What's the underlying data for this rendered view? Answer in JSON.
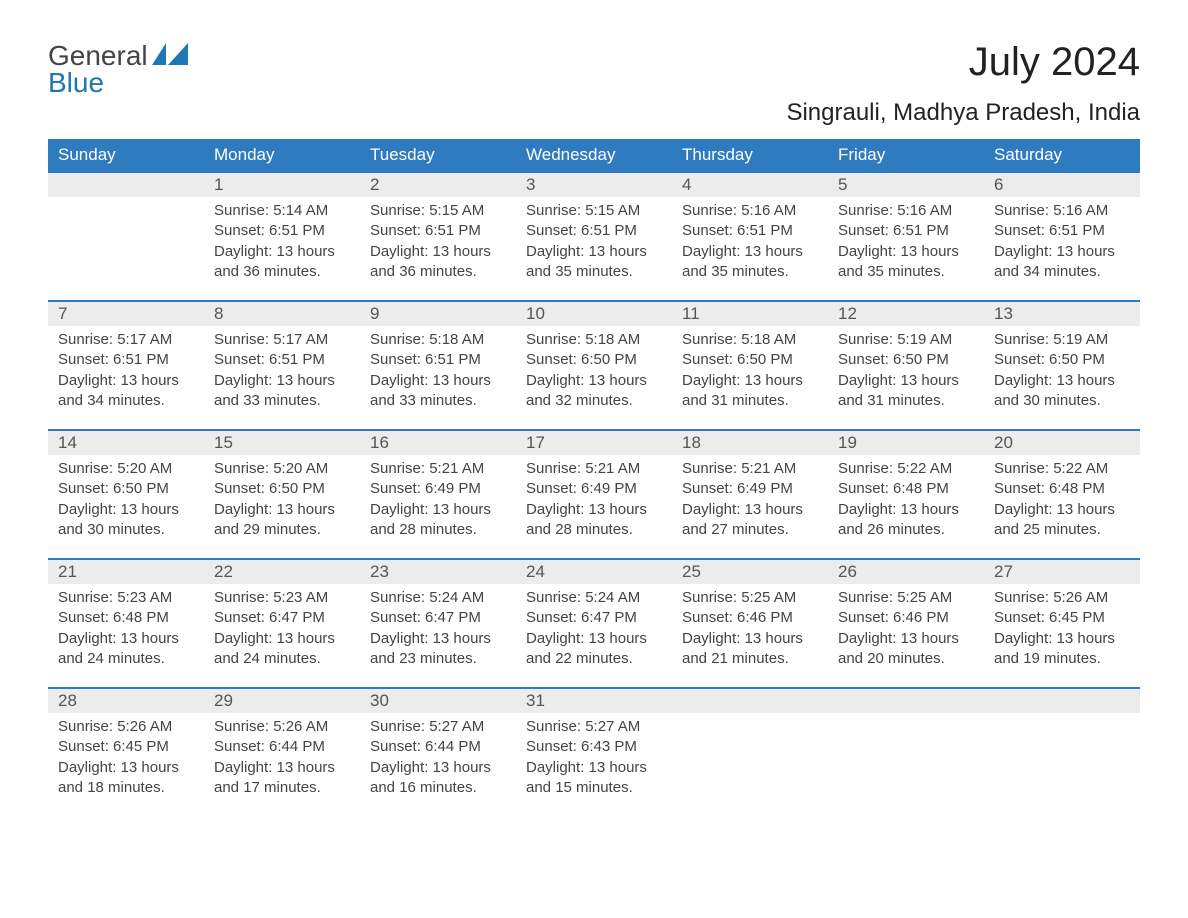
{
  "logo": {
    "general": "General",
    "blue": "Blue"
  },
  "title": "July 2024",
  "subtitle": "Singrauli, Madhya Pradesh, India",
  "colors": {
    "header_bg": "#2f7bbf",
    "header_text": "#ffffff",
    "daynum_bg": "#ececec",
    "row_border": "#2f7bbf",
    "body_text": "#444444",
    "background": "#ffffff",
    "logo_blue": "#1f77b4"
  },
  "calendar": {
    "day_names": [
      "Sunday",
      "Monday",
      "Tuesday",
      "Wednesday",
      "Thursday",
      "Friday",
      "Saturday"
    ],
    "weeks": [
      [
        null,
        {
          "day": "1",
          "sunrise": "Sunrise: 5:14 AM",
          "sunset": "Sunset: 6:51 PM",
          "daylight1": "Daylight: 13 hours",
          "daylight2": "and 36 minutes."
        },
        {
          "day": "2",
          "sunrise": "Sunrise: 5:15 AM",
          "sunset": "Sunset: 6:51 PM",
          "daylight1": "Daylight: 13 hours",
          "daylight2": "and 36 minutes."
        },
        {
          "day": "3",
          "sunrise": "Sunrise: 5:15 AM",
          "sunset": "Sunset: 6:51 PM",
          "daylight1": "Daylight: 13 hours",
          "daylight2": "and 35 minutes."
        },
        {
          "day": "4",
          "sunrise": "Sunrise: 5:16 AM",
          "sunset": "Sunset: 6:51 PM",
          "daylight1": "Daylight: 13 hours",
          "daylight2": "and 35 minutes."
        },
        {
          "day": "5",
          "sunrise": "Sunrise: 5:16 AM",
          "sunset": "Sunset: 6:51 PM",
          "daylight1": "Daylight: 13 hours",
          "daylight2": "and 35 minutes."
        },
        {
          "day": "6",
          "sunrise": "Sunrise: 5:16 AM",
          "sunset": "Sunset: 6:51 PM",
          "daylight1": "Daylight: 13 hours",
          "daylight2": "and 34 minutes."
        }
      ],
      [
        {
          "day": "7",
          "sunrise": "Sunrise: 5:17 AM",
          "sunset": "Sunset: 6:51 PM",
          "daylight1": "Daylight: 13 hours",
          "daylight2": "and 34 minutes."
        },
        {
          "day": "8",
          "sunrise": "Sunrise: 5:17 AM",
          "sunset": "Sunset: 6:51 PM",
          "daylight1": "Daylight: 13 hours",
          "daylight2": "and 33 minutes."
        },
        {
          "day": "9",
          "sunrise": "Sunrise: 5:18 AM",
          "sunset": "Sunset: 6:51 PM",
          "daylight1": "Daylight: 13 hours",
          "daylight2": "and 33 minutes."
        },
        {
          "day": "10",
          "sunrise": "Sunrise: 5:18 AM",
          "sunset": "Sunset: 6:50 PM",
          "daylight1": "Daylight: 13 hours",
          "daylight2": "and 32 minutes."
        },
        {
          "day": "11",
          "sunrise": "Sunrise: 5:18 AM",
          "sunset": "Sunset: 6:50 PM",
          "daylight1": "Daylight: 13 hours",
          "daylight2": "and 31 minutes."
        },
        {
          "day": "12",
          "sunrise": "Sunrise: 5:19 AM",
          "sunset": "Sunset: 6:50 PM",
          "daylight1": "Daylight: 13 hours",
          "daylight2": "and 31 minutes."
        },
        {
          "day": "13",
          "sunrise": "Sunrise: 5:19 AM",
          "sunset": "Sunset: 6:50 PM",
          "daylight1": "Daylight: 13 hours",
          "daylight2": "and 30 minutes."
        }
      ],
      [
        {
          "day": "14",
          "sunrise": "Sunrise: 5:20 AM",
          "sunset": "Sunset: 6:50 PM",
          "daylight1": "Daylight: 13 hours",
          "daylight2": "and 30 minutes."
        },
        {
          "day": "15",
          "sunrise": "Sunrise: 5:20 AM",
          "sunset": "Sunset: 6:50 PM",
          "daylight1": "Daylight: 13 hours",
          "daylight2": "and 29 minutes."
        },
        {
          "day": "16",
          "sunrise": "Sunrise: 5:21 AM",
          "sunset": "Sunset: 6:49 PM",
          "daylight1": "Daylight: 13 hours",
          "daylight2": "and 28 minutes."
        },
        {
          "day": "17",
          "sunrise": "Sunrise: 5:21 AM",
          "sunset": "Sunset: 6:49 PM",
          "daylight1": "Daylight: 13 hours",
          "daylight2": "and 28 minutes."
        },
        {
          "day": "18",
          "sunrise": "Sunrise: 5:21 AM",
          "sunset": "Sunset: 6:49 PM",
          "daylight1": "Daylight: 13 hours",
          "daylight2": "and 27 minutes."
        },
        {
          "day": "19",
          "sunrise": "Sunrise: 5:22 AM",
          "sunset": "Sunset: 6:48 PM",
          "daylight1": "Daylight: 13 hours",
          "daylight2": "and 26 minutes."
        },
        {
          "day": "20",
          "sunrise": "Sunrise: 5:22 AM",
          "sunset": "Sunset: 6:48 PM",
          "daylight1": "Daylight: 13 hours",
          "daylight2": "and 25 minutes."
        }
      ],
      [
        {
          "day": "21",
          "sunrise": "Sunrise: 5:23 AM",
          "sunset": "Sunset: 6:48 PM",
          "daylight1": "Daylight: 13 hours",
          "daylight2": "and 24 minutes."
        },
        {
          "day": "22",
          "sunrise": "Sunrise: 5:23 AM",
          "sunset": "Sunset: 6:47 PM",
          "daylight1": "Daylight: 13 hours",
          "daylight2": "and 24 minutes."
        },
        {
          "day": "23",
          "sunrise": "Sunrise: 5:24 AM",
          "sunset": "Sunset: 6:47 PM",
          "daylight1": "Daylight: 13 hours",
          "daylight2": "and 23 minutes."
        },
        {
          "day": "24",
          "sunrise": "Sunrise: 5:24 AM",
          "sunset": "Sunset: 6:47 PM",
          "daylight1": "Daylight: 13 hours",
          "daylight2": "and 22 minutes."
        },
        {
          "day": "25",
          "sunrise": "Sunrise: 5:25 AM",
          "sunset": "Sunset: 6:46 PM",
          "daylight1": "Daylight: 13 hours",
          "daylight2": "and 21 minutes."
        },
        {
          "day": "26",
          "sunrise": "Sunrise: 5:25 AM",
          "sunset": "Sunset: 6:46 PM",
          "daylight1": "Daylight: 13 hours",
          "daylight2": "and 20 minutes."
        },
        {
          "day": "27",
          "sunrise": "Sunrise: 5:26 AM",
          "sunset": "Sunset: 6:45 PM",
          "daylight1": "Daylight: 13 hours",
          "daylight2": "and 19 minutes."
        }
      ],
      [
        {
          "day": "28",
          "sunrise": "Sunrise: 5:26 AM",
          "sunset": "Sunset: 6:45 PM",
          "daylight1": "Daylight: 13 hours",
          "daylight2": "and 18 minutes."
        },
        {
          "day": "29",
          "sunrise": "Sunrise: 5:26 AM",
          "sunset": "Sunset: 6:44 PM",
          "daylight1": "Daylight: 13 hours",
          "daylight2": "and 17 minutes."
        },
        {
          "day": "30",
          "sunrise": "Sunrise: 5:27 AM",
          "sunset": "Sunset: 6:44 PM",
          "daylight1": "Daylight: 13 hours",
          "daylight2": "and 16 minutes."
        },
        {
          "day": "31",
          "sunrise": "Sunrise: 5:27 AM",
          "sunset": "Sunset: 6:43 PM",
          "daylight1": "Daylight: 13 hours",
          "daylight2": "and 15 minutes."
        },
        null,
        null,
        null
      ]
    ]
  }
}
